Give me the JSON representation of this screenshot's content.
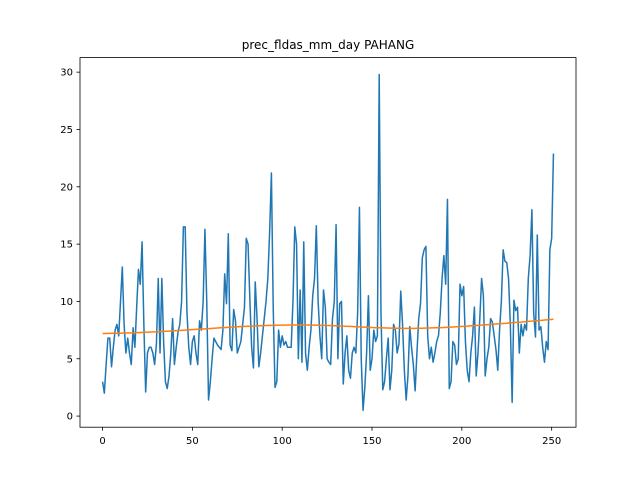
{
  "chart_data": {
    "type": "line",
    "title": "prec_fldas_mm_day PAHANG",
    "x": [
      0,
      1,
      2,
      3,
      4,
      5,
      6,
      7,
      8,
      9,
      10,
      11,
      12,
      13,
      14,
      15,
      16,
      17,
      18,
      19,
      20,
      21,
      22,
      23,
      24,
      25,
      26,
      27,
      28,
      29,
      30,
      31,
      32,
      33,
      34,
      35,
      36,
      37,
      38,
      39,
      40,
      41,
      42,
      43,
      44,
      45,
      46,
      47,
      48,
      49,
      50,
      51,
      52,
      53,
      54,
      55,
      56,
      57,
      58,
      59,
      60,
      61,
      62,
      63,
      64,
      65,
      66,
      67,
      68,
      69,
      70,
      71,
      72,
      73,
      74,
      75,
      76,
      77,
      78,
      79,
      80,
      81,
      82,
      83,
      84,
      85,
      86,
      87,
      88,
      89,
      90,
      91,
      92,
      93,
      94,
      95,
      96,
      97,
      98,
      99,
      100,
      101,
      102,
      103,
      104,
      105,
      106,
      107,
      108,
      109,
      110,
      111,
      112,
      113,
      114,
      115,
      116,
      117,
      118,
      119,
      120,
      121,
      122,
      123,
      124,
      125,
      126,
      127,
      128,
      129,
      130,
      131,
      132,
      133,
      134,
      135,
      136,
      137,
      138,
      139,
      140,
      141,
      142,
      143,
      144,
      145,
      146,
      147,
      148,
      149,
      150,
      151,
      152,
      153,
      154,
      155,
      156,
      157,
      158,
      159,
      160,
      161,
      162,
      163,
      164,
      165,
      166,
      167,
      168,
      169,
      170,
      171,
      172,
      173,
      174,
      175,
      176,
      177,
      178,
      179,
      180,
      181,
      182,
      183,
      184,
      185,
      186,
      187,
      188,
      189,
      190,
      191,
      192,
      193,
      194,
      195,
      196,
      197,
      198,
      199,
      200,
      201,
      202,
      203,
      204,
      205,
      206,
      207,
      208,
      209,
      210,
      211,
      212,
      213,
      214,
      215,
      216,
      217,
      218,
      219,
      220,
      221,
      222,
      223,
      224,
      225,
      226,
      227,
      228,
      229,
      230,
      231,
      232,
      233,
      234,
      235,
      236,
      237,
      238,
      239,
      240,
      241,
      242,
      243,
      244,
      245,
      246,
      247,
      248,
      249,
      250,
      251
    ],
    "series": [
      {
        "color": "#1f77b4",
        "values": [
          3,
          2,
          4.5,
          6.8,
          6.8,
          4.3,
          6,
          7.5,
          8,
          7,
          10,
          13,
          8,
          5.5,
          6.8,
          5.5,
          4.5,
          7.7,
          6,
          9.5,
          12.8,
          11.5,
          15.2,
          8,
          2.1,
          5.5,
          6,
          6,
          5.5,
          4.5,
          6.3,
          12,
          5.5,
          12,
          6.5,
          3,
          2.4,
          3.5,
          5.5,
          8.5,
          4.5,
          6,
          7.3,
          8,
          10,
          16.5,
          16.5,
          9,
          6,
          4.5,
          6.5,
          7,
          5.5,
          4.5,
          8.3,
          7.5,
          10,
          16.3,
          10,
          1.4,
          3,
          5,
          6.8,
          6.5,
          6.2,
          6,
          5.8,
          7.5,
          12.4,
          9.8,
          15.9,
          6.2,
          5.7,
          9.3,
          8.3,
          5.5,
          6,
          6.5,
          8,
          9.5,
          15.5,
          15,
          10.2,
          6,
          4.2,
          11.7,
          8.5,
          4.3,
          5.5,
          7,
          8.5,
          10,
          12,
          16,
          21.2,
          9.5,
          2.5,
          3,
          7.5,
          6,
          7,
          6.2,
          6.5,
          6,
          6,
          6,
          10,
          16.5,
          15,
          5,
          11,
          4.7,
          15.2,
          5.5,
          4,
          6,
          7.5,
          10.5,
          12,
          16.6,
          10,
          7,
          5,
          11,
          9.5,
          5,
          4.7,
          4.5,
          8.5,
          10,
          16.7,
          5,
          9.8,
          10,
          2.8,
          5.5,
          7,
          4,
          3.3,
          5.5,
          6,
          5.5,
          9,
          18.2,
          5,
          0.5,
          2.5,
          5.5,
          10.5,
          4,
          5,
          7.5,
          6.5,
          7,
          29.8,
          8.8,
          2.3,
          3,
          5,
          6.8,
          2.3,
          4,
          8,
          7.5,
          5.5,
          6.3,
          10.9,
          8,
          4,
          1.4,
          3.5,
          7.8,
          6,
          4.5,
          2.2,
          5.5,
          8.5,
          9.8,
          13.8,
          14.5,
          14.8,
          7,
          5,
          6,
          4.7,
          5.5,
          6.5,
          7,
          9,
          12,
          14,
          11.5,
          18.9,
          2.4,
          3,
          6.5,
          6.2,
          4.5,
          5,
          11.5,
          10.5,
          11.3,
          6.5,
          4,
          3,
          5.5,
          7,
          9.5,
          3.5,
          5.5,
          8.5,
          12,
          10.5,
          3.5,
          5,
          6,
          8.5,
          8.2,
          7,
          5.8,
          4,
          7.5,
          10,
          14.5,
          13.5,
          13.4,
          12,
          8,
          1.2,
          10.1,
          9.2,
          9.5,
          5.5,
          8,
          7,
          8,
          7.5,
          12,
          14,
          18,
          9,
          6.9,
          15.8,
          7.5,
          7.8,
          6,
          4.7,
          6.5,
          5.8,
          14.5,
          15.5,
          22.9
        ]
      },
      {
        "color": "#ff7f0e",
        "values": [
          7.2,
          7.2,
          7.2,
          7.21,
          7.21,
          7.21,
          7.22,
          7.22,
          7.22,
          7.23,
          7.23,
          7.24,
          7.24,
          7.25,
          7.25,
          7.26,
          7.26,
          7.27,
          7.27,
          7.28,
          7.28,
          7.29,
          7.3,
          7.3,
          7.31,
          7.32,
          7.32,
          7.33,
          7.34,
          7.35,
          7.35,
          7.36,
          7.37,
          7.38,
          7.39,
          7.4,
          7.4,
          7.41,
          7.42,
          7.43,
          7.44,
          7.45,
          7.46,
          7.47,
          7.48,
          7.49,
          7.5,
          7.51,
          7.52,
          7.53,
          7.54,
          7.55,
          7.56,
          7.57,
          7.58,
          7.59,
          7.6,
          7.61,
          7.62,
          7.63,
          7.64,
          7.65,
          7.66,
          7.67,
          7.68,
          7.69,
          7.7,
          7.71,
          7.72,
          7.73,
          7.74,
          7.75,
          7.76,
          7.77,
          7.78,
          7.79,
          7.8,
          7.8,
          7.81,
          7.82,
          7.83,
          7.84,
          7.84,
          7.85,
          7.86,
          7.86,
          7.87,
          7.88,
          7.88,
          7.89,
          7.89,
          7.9,
          7.9,
          7.91,
          7.91,
          7.91,
          7.92,
          7.92,
          7.92,
          7.93,
          7.93,
          7.93,
          7.93,
          7.94,
          7.94,
          7.94,
          7.94,
          7.94,
          7.94,
          7.94,
          7.94,
          7.94,
          7.94,
          7.94,
          7.94,
          7.94,
          7.93,
          7.93,
          7.93,
          7.93,
          7.92,
          7.92,
          7.92,
          7.91,
          7.91,
          7.9,
          7.9,
          7.89,
          7.89,
          7.88,
          7.87,
          7.87,
          7.86,
          7.85,
          7.85,
          7.84,
          7.83,
          7.82,
          7.82,
          7.81,
          7.8,
          7.79,
          7.79,
          7.78,
          7.77,
          7.76,
          7.76,
          7.75,
          7.74,
          7.73,
          7.73,
          7.72,
          7.71,
          7.71,
          7.7,
          7.7,
          7.69,
          7.69,
          7.68,
          7.68,
          7.67,
          7.67,
          7.67,
          7.66,
          7.66,
          7.66,
          7.66,
          7.65,
          7.65,
          7.65,
          7.65,
          7.65,
          7.65,
          7.65,
          7.65,
          7.66,
          7.66,
          7.66,
          7.66,
          7.67,
          7.67,
          7.68,
          7.68,
          7.69,
          7.69,
          7.7,
          7.7,
          7.71,
          7.72,
          7.72,
          7.73,
          7.74,
          7.75,
          7.76,
          7.76,
          7.77,
          7.78,
          7.79,
          7.8,
          7.81,
          7.82,
          7.83,
          7.84,
          7.85,
          7.86,
          7.87,
          7.88,
          7.89,
          7.9,
          7.91,
          7.92,
          7.94,
          7.95,
          7.96,
          7.97,
          7.98,
          7.99,
          8.01,
          8.02,
          8.03,
          8.04,
          8.05,
          8.07,
          8.08,
          8.09,
          8.1,
          8.12,
          8.13,
          8.14,
          8.15,
          8.17,
          8.18,
          8.19,
          8.2,
          8.22,
          8.23,
          8.24,
          8.26,
          8.27,
          8.28,
          8.3,
          8.31,
          8.32,
          8.34,
          8.35,
          8.36,
          8.38,
          8.39,
          8.4,
          8.42,
          8.43,
          8.45
        ]
      }
    ],
    "xlim": [
      -12.55,
      263.55
    ],
    "xticks": [
      0,
      50,
      100,
      150,
      200,
      250
    ],
    "ylim": [
      -0.97,
      31.27
    ],
    "yticks": [
      0,
      5,
      10,
      15,
      20,
      25,
      30
    ]
  }
}
